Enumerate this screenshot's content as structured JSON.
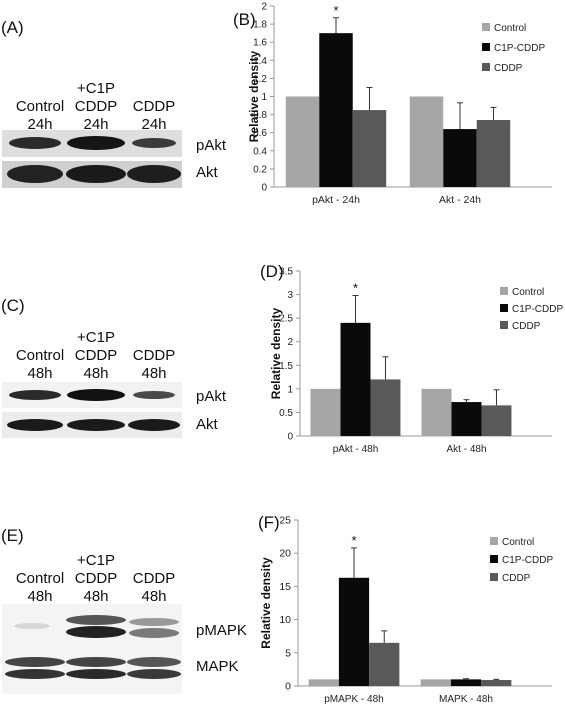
{
  "blots": [
    {
      "label": "(A)",
      "lanes": [
        [
          "Control",
          "24h"
        ],
        [
          "+C1P",
          "CDDP",
          "24h"
        ],
        [
          "CDDP",
          "24h"
        ]
      ],
      "rows": [
        "pAkt",
        "Akt"
      ]
    },
    {
      "label": "(C)",
      "lanes": [
        [
          "Control",
          "48h"
        ],
        [
          "+C1P",
          "CDDP",
          "48h"
        ],
        [
          "CDDP",
          "48h"
        ]
      ],
      "rows": [
        "pAkt",
        "Akt"
      ]
    },
    {
      "label": "(E)",
      "lanes": [
        [
          "Control",
          "48h"
        ],
        [
          "+C1P",
          "CDDP",
          "48h"
        ],
        [
          "CDDP",
          "48h"
        ]
      ],
      "rows": [
        "pMAPK",
        "MAPK"
      ]
    }
  ],
  "colors": {
    "Control": "#a6a6a6",
    "C1P-CDDP": "#0a0a0a",
    "CDDP": "#595959",
    "axis": "#999999"
  },
  "chart_data": [
    {
      "panel_label": "(B)",
      "type": "bar",
      "ylabel": "Relative density",
      "ylim": [
        0,
        2
      ],
      "yticks": [
        "0",
        "0.2",
        "0.4",
        "0.6",
        "0.8",
        "1",
        "1.2",
        "1.4",
        "1.6",
        "1.8",
        "2"
      ],
      "categories": [
        "pAkt - 24h",
        "Akt - 24h"
      ],
      "series": [
        {
          "name": "Control",
          "values": [
            1.0,
            1.0
          ],
          "errors": [
            0,
            0
          ]
        },
        {
          "name": "C1P-CDDP",
          "values": [
            1.7,
            0.64
          ],
          "errors": [
            0.17,
            0.29
          ]
        },
        {
          "name": "CDDP",
          "values": [
            0.85,
            0.74
          ],
          "errors": [
            0.25,
            0.14
          ]
        }
      ],
      "significance": [
        {
          "category": 0,
          "series": 1,
          "mark": "*"
        }
      ],
      "legend_position": "top-right"
    },
    {
      "panel_label": "(D)",
      "type": "bar",
      "ylabel": "Relative density",
      "ylim": [
        0,
        3.5
      ],
      "yticks": [
        "0",
        "0.5",
        "1",
        "1.5",
        "2",
        "2.5",
        "3",
        "3.5"
      ],
      "categories": [
        "pAkt - 48h",
        "Akt - 48h"
      ],
      "series": [
        {
          "name": "Control",
          "values": [
            1.0,
            1.0
          ],
          "errors": [
            0,
            0
          ]
        },
        {
          "name": "C1P-CDDP",
          "values": [
            2.4,
            0.72
          ],
          "errors": [
            0.58,
            0.05
          ]
        },
        {
          "name": "CDDP",
          "values": [
            1.2,
            0.65
          ],
          "errors": [
            0.48,
            0.33
          ]
        }
      ],
      "significance": [
        {
          "category": 0,
          "series": 1,
          "mark": "*"
        }
      ],
      "legend_position": "top-right"
    },
    {
      "panel_label": "(F)",
      "type": "bar",
      "ylabel": "Relative density",
      "ylim": [
        0,
        25
      ],
      "yticks": [
        "0",
        "5",
        "10",
        "15",
        "20",
        "25"
      ],
      "categories": [
        "pMAPK - 48h",
        "MAPK - 48h"
      ],
      "series": [
        {
          "name": "Control",
          "values": [
            1.0,
            1.0
          ],
          "errors": [
            0,
            0
          ]
        },
        {
          "name": "C1P-CDDP",
          "values": [
            16.3,
            1.0
          ],
          "errors": [
            4.5,
            0.1
          ]
        },
        {
          "name": "CDDP",
          "values": [
            6.5,
            0.9
          ],
          "errors": [
            1.8,
            0.1
          ]
        }
      ],
      "significance": [
        {
          "category": 0,
          "series": 1,
          "mark": "*"
        }
      ],
      "legend_position": "top-right"
    }
  ]
}
